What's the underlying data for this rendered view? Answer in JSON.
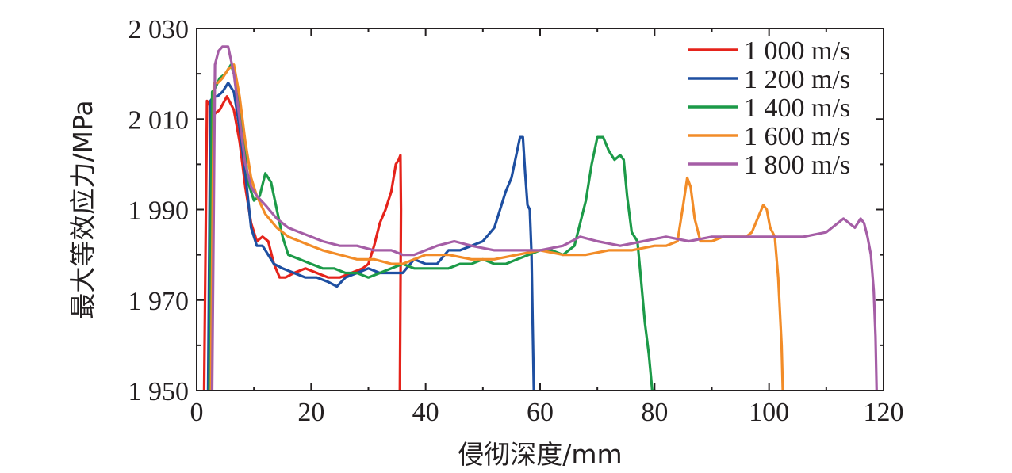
{
  "chart_data": {
    "type": "line",
    "xlabel": "侵彻深度/mm",
    "ylabel": "最大等效应力/MPa",
    "xlim": [
      0,
      120
    ],
    "ylim": [
      1950,
      2030
    ],
    "xticks": [
      0,
      20,
      40,
      60,
      80,
      100,
      120
    ],
    "yticks": [
      1950,
      1970,
      1990,
      2010,
      2030
    ],
    "xtick_labels": [
      "0",
      "20",
      "40",
      "60",
      "80",
      "100",
      "120"
    ],
    "ytick_labels": [
      "1 950",
      "1 970",
      "1 990",
      "2 010",
      "2 030"
    ],
    "grid": false,
    "legend_position": "top-right",
    "series": [
      {
        "name": "1 000 m/s",
        "color": "#e5231b",
        "x": [
          1.3,
          1.8,
          2.3,
          3.0,
          4.0,
          5.3,
          6.5,
          7.5,
          8.5,
          9.5,
          10.5,
          11.5,
          12.5,
          13.5,
          14.5,
          15.5,
          17,
          19,
          21,
          23,
          25,
          27,
          29,
          30,
          31,
          32,
          33,
          34,
          34.8,
          35.3,
          35.6,
          35.7,
          35.6,
          35.5
        ],
        "y": [
          1950,
          2014,
          2013,
          2011,
          2012,
          2015,
          2012,
          2005,
          1995,
          1987,
          1983,
          1984,
          1983,
          1978,
          1975,
          1975,
          1976,
          1977,
          1976,
          1975,
          1975,
          1976,
          1977,
          1978,
          1982,
          1987,
          1990,
          1994,
          2000,
          2001,
          2002,
          1990,
          1970,
          1950
        ]
      },
      {
        "name": "1 200 m/s",
        "color": "#1e4fa1",
        "x": [
          2.0,
          2.4,
          3.0,
          3.6,
          4.5,
          5.5,
          6.5,
          7.5,
          8.5,
          9.5,
          10.5,
          11.5,
          12.5,
          13.5,
          15,
          17,
          19,
          21,
          23,
          24.5,
          26,
          28,
          30,
          32,
          34,
          36,
          38,
          40,
          42,
          44,
          46,
          48,
          50,
          52,
          53,
          54,
          55,
          56,
          56.5,
          57.0,
          57.4,
          57.8,
          58.2,
          58.5,
          58.7,
          58.9
        ],
        "y": [
          1950,
          2014,
          2015,
          2015,
          2016,
          2018,
          2016,
          2008,
          1998,
          1986,
          1982,
          1982,
          1980,
          1978,
          1977,
          1976,
          1975,
          1975,
          1974,
          1973,
          1975,
          1976,
          1977,
          1976,
          1976,
          1976,
          1979,
          1978,
          1978,
          1981,
          1981,
          1982,
          1983,
          1986,
          1990,
          1994,
          1997,
          2003,
          2006,
          2006,
          1998,
          1991,
          1990,
          1980,
          1965,
          1950
        ]
      },
      {
        "name": "1 400 m/s",
        "color": "#1c9a48",
        "x": [
          2.2,
          2.7,
          3.3,
          4.0,
          5.0,
          6.0,
          7.0,
          8.0,
          9.0,
          10.0,
          11.0,
          12.0,
          13.0,
          14.0,
          15.0,
          16.0,
          18,
          20,
          22,
          24,
          26,
          28,
          30,
          32,
          34,
          36,
          38,
          40,
          42,
          44,
          46,
          48,
          50,
          52,
          54,
          56,
          58,
          60,
          62,
          64,
          66,
          68,
          69,
          70,
          71,
          72,
          73,
          74,
          74.6,
          75.2,
          76,
          77,
          77.6,
          78.3,
          79,
          79.6,
          80.0
        ],
        "y": [
          1950,
          2016,
          2017,
          2019,
          2020,
          2022,
          2018,
          2008,
          1996,
          1992,
          1993,
          1998,
          1996,
          1990,
          1984,
          1980,
          1979,
          1978,
          1977,
          1977,
          1976,
          1976,
          1975,
          1976,
          1977,
          1978,
          1977,
          1977,
          1977,
          1977,
          1978,
          1978,
          1979,
          1978,
          1978,
          1979,
          1980,
          1981,
          1981,
          1980,
          1982,
          1992,
          2000,
          2006,
          2006,
          2003,
          2001,
          2002,
          2001,
          1993,
          1985,
          1983,
          1975,
          1965,
          1958,
          1950,
          1950
        ]
      },
      {
        "name": "1 600 m/s",
        "color": "#f28c28",
        "x": [
          2.5,
          3.0,
          3.7,
          4.5,
          5.5,
          6.5,
          7.5,
          8.5,
          9.5,
          10.5,
          12,
          14,
          16,
          18,
          20,
          22,
          25,
          28,
          31,
          34,
          36,
          38,
          40,
          44,
          48,
          52,
          56,
          60,
          64,
          68,
          72,
          76,
          80,
          82,
          84,
          85,
          85.7,
          86.3,
          87,
          88,
          90,
          92,
          94,
          96,
          97,
          98,
          99,
          99.6,
          100.2,
          101,
          101.6,
          102.2,
          102.4
        ],
        "y": [
          1950,
          2018,
          2018,
          2019,
          2021,
          2022,
          2015,
          2005,
          1997,
          1993,
          1989,
          1986,
          1984,
          1983,
          1982,
          1981,
          1980,
          1979,
          1979,
          1978,
          1978,
          1979,
          1980,
          1980,
          1979,
          1979,
          1980,
          1981,
          1980,
          1980,
          1981,
          1981,
          1982,
          1982,
          1983,
          1991,
          1997,
          1995,
          1988,
          1983,
          1983,
          1984,
          1984,
          1984,
          1985,
          1988,
          1991,
          1990,
          1986,
          1984,
          1975,
          1960,
          1950
        ]
      },
      {
        "name": "1 800 m/s",
        "color": "#a55ea6",
        "x": [
          2.7,
          3.2,
          3.8,
          4.5,
          5.5,
          6.5,
          7.5,
          8.5,
          9.5,
          10.5,
          12,
          14,
          16,
          18,
          20,
          22,
          25,
          28,
          31,
          34,
          36,
          38,
          40,
          42,
          45,
          48,
          52,
          56,
          60,
          64,
          67,
          70,
          74,
          78,
          82,
          86,
          90,
          94,
          98,
          102,
          106,
          110,
          112,
          113,
          114,
          115,
          116,
          116.6,
          117.2,
          117.8,
          118.3,
          118.6,
          118.8
        ],
        "y": [
          1950,
          2022,
          2025,
          2026,
          2026,
          2020,
          2010,
          2000,
          1995,
          1993,
          1991,
          1988,
          1986,
          1985,
          1984,
          1983,
          1982,
          1982,
          1981,
          1981,
          1980,
          1980,
          1981,
          1982,
          1983,
          1982,
          1981,
          1981,
          1981,
          1982,
          1984,
          1983,
          1982,
          1983,
          1984,
          1983,
          1984,
          1984,
          1984,
          1984,
          1984,
          1985,
          1987,
          1988,
          1987,
          1986,
          1988,
          1987,
          1984,
          1980,
          1972,
          1962,
          1950
        ]
      }
    ]
  }
}
